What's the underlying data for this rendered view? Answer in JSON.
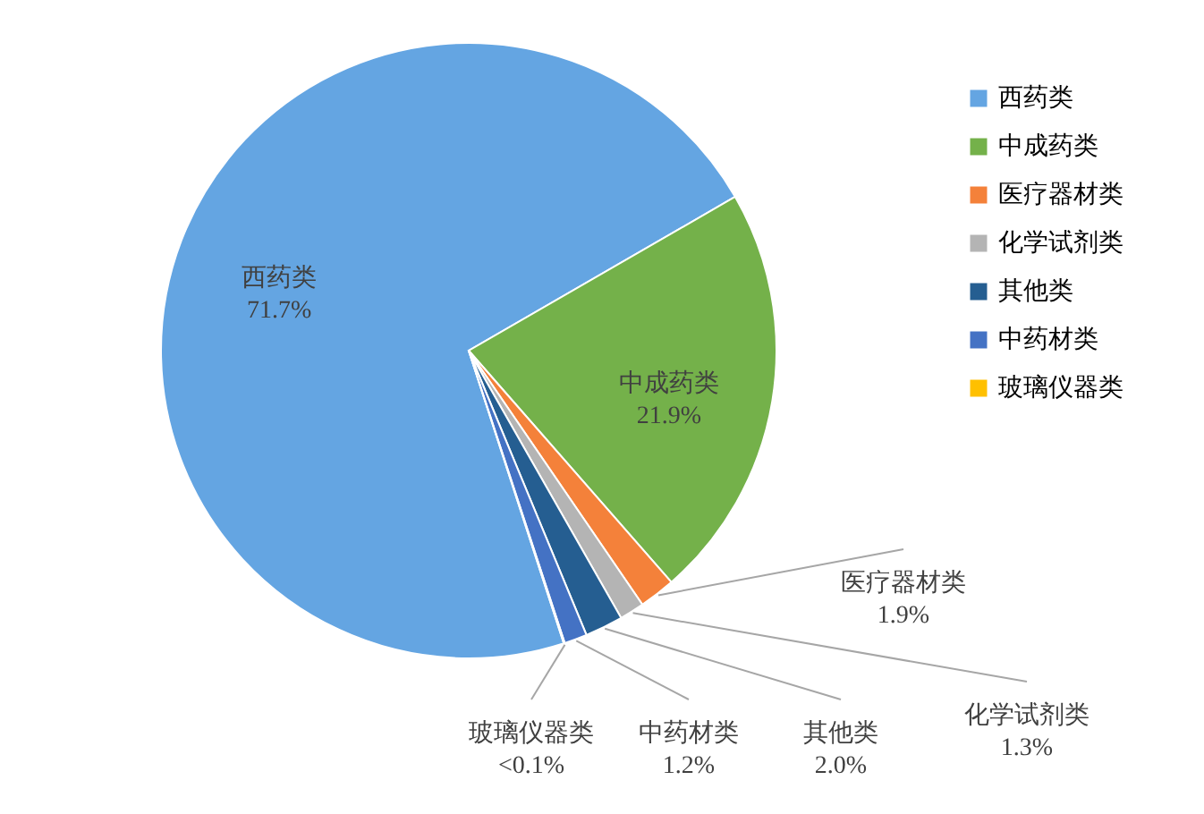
{
  "chart_data": {
    "type": "pie",
    "categories": [
      "西药类",
      "中成药类",
      "医疗器材类",
      "化学试剂类",
      "其他类",
      "中药材类",
      "玻璃仪器类"
    ],
    "values": [
      71.7,
      21.9,
      1.9,
      1.3,
      2.0,
      1.2,
      0.05
    ],
    "value_labels": [
      "71.7%",
      "21.9%",
      "1.9%",
      "1.3%",
      "2.0%",
      "1.2%",
      "<0.1%"
    ],
    "colors": [
      "#64a5e2",
      "#74b14a",
      "#f4813a",
      "#b4b4b4",
      "#255e91",
      "#4472c4",
      "#ffc000"
    ],
    "legend": "right"
  }
}
